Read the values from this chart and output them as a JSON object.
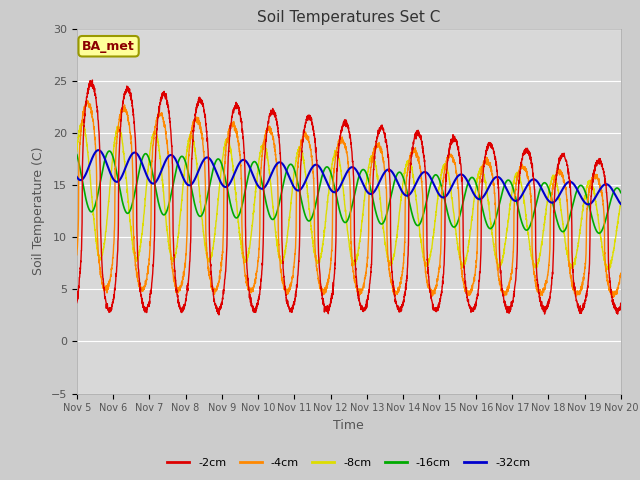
{
  "title": "Soil Temperatures Set C",
  "xlabel": "Time",
  "ylabel": "Soil Temperature (C)",
  "ylim": [
    -5,
    30
  ],
  "xlim": [
    0,
    360
  ],
  "x_tick_labels": [
    "Nov 5",
    "Nov 6",
    "Nov 7",
    "Nov 8",
    "Nov 9",
    "Nov 10",
    "Nov 11",
    "Nov 12",
    "Nov 13",
    "Nov 14",
    "Nov 15",
    "Nov 16",
    "Nov 17",
    "Nov 18",
    "Nov 19",
    "Nov 20"
  ],
  "legend_labels": [
    "-2cm",
    "-4cm",
    "-8cm",
    "-16cm",
    "-32cm"
  ],
  "line_colors": [
    "#dd0000",
    "#ff8800",
    "#dddd00",
    "#00aa00",
    "#0000cc"
  ],
  "annotation_text": "BA_met",
  "annotation_bg": "#ffff99",
  "annotation_border": "#999900",
  "plot_bg": "#e0e0e0",
  "grid_color": "#ffffff",
  "yticks": [
    -5,
    0,
    5,
    10,
    15,
    20,
    25,
    30
  ]
}
